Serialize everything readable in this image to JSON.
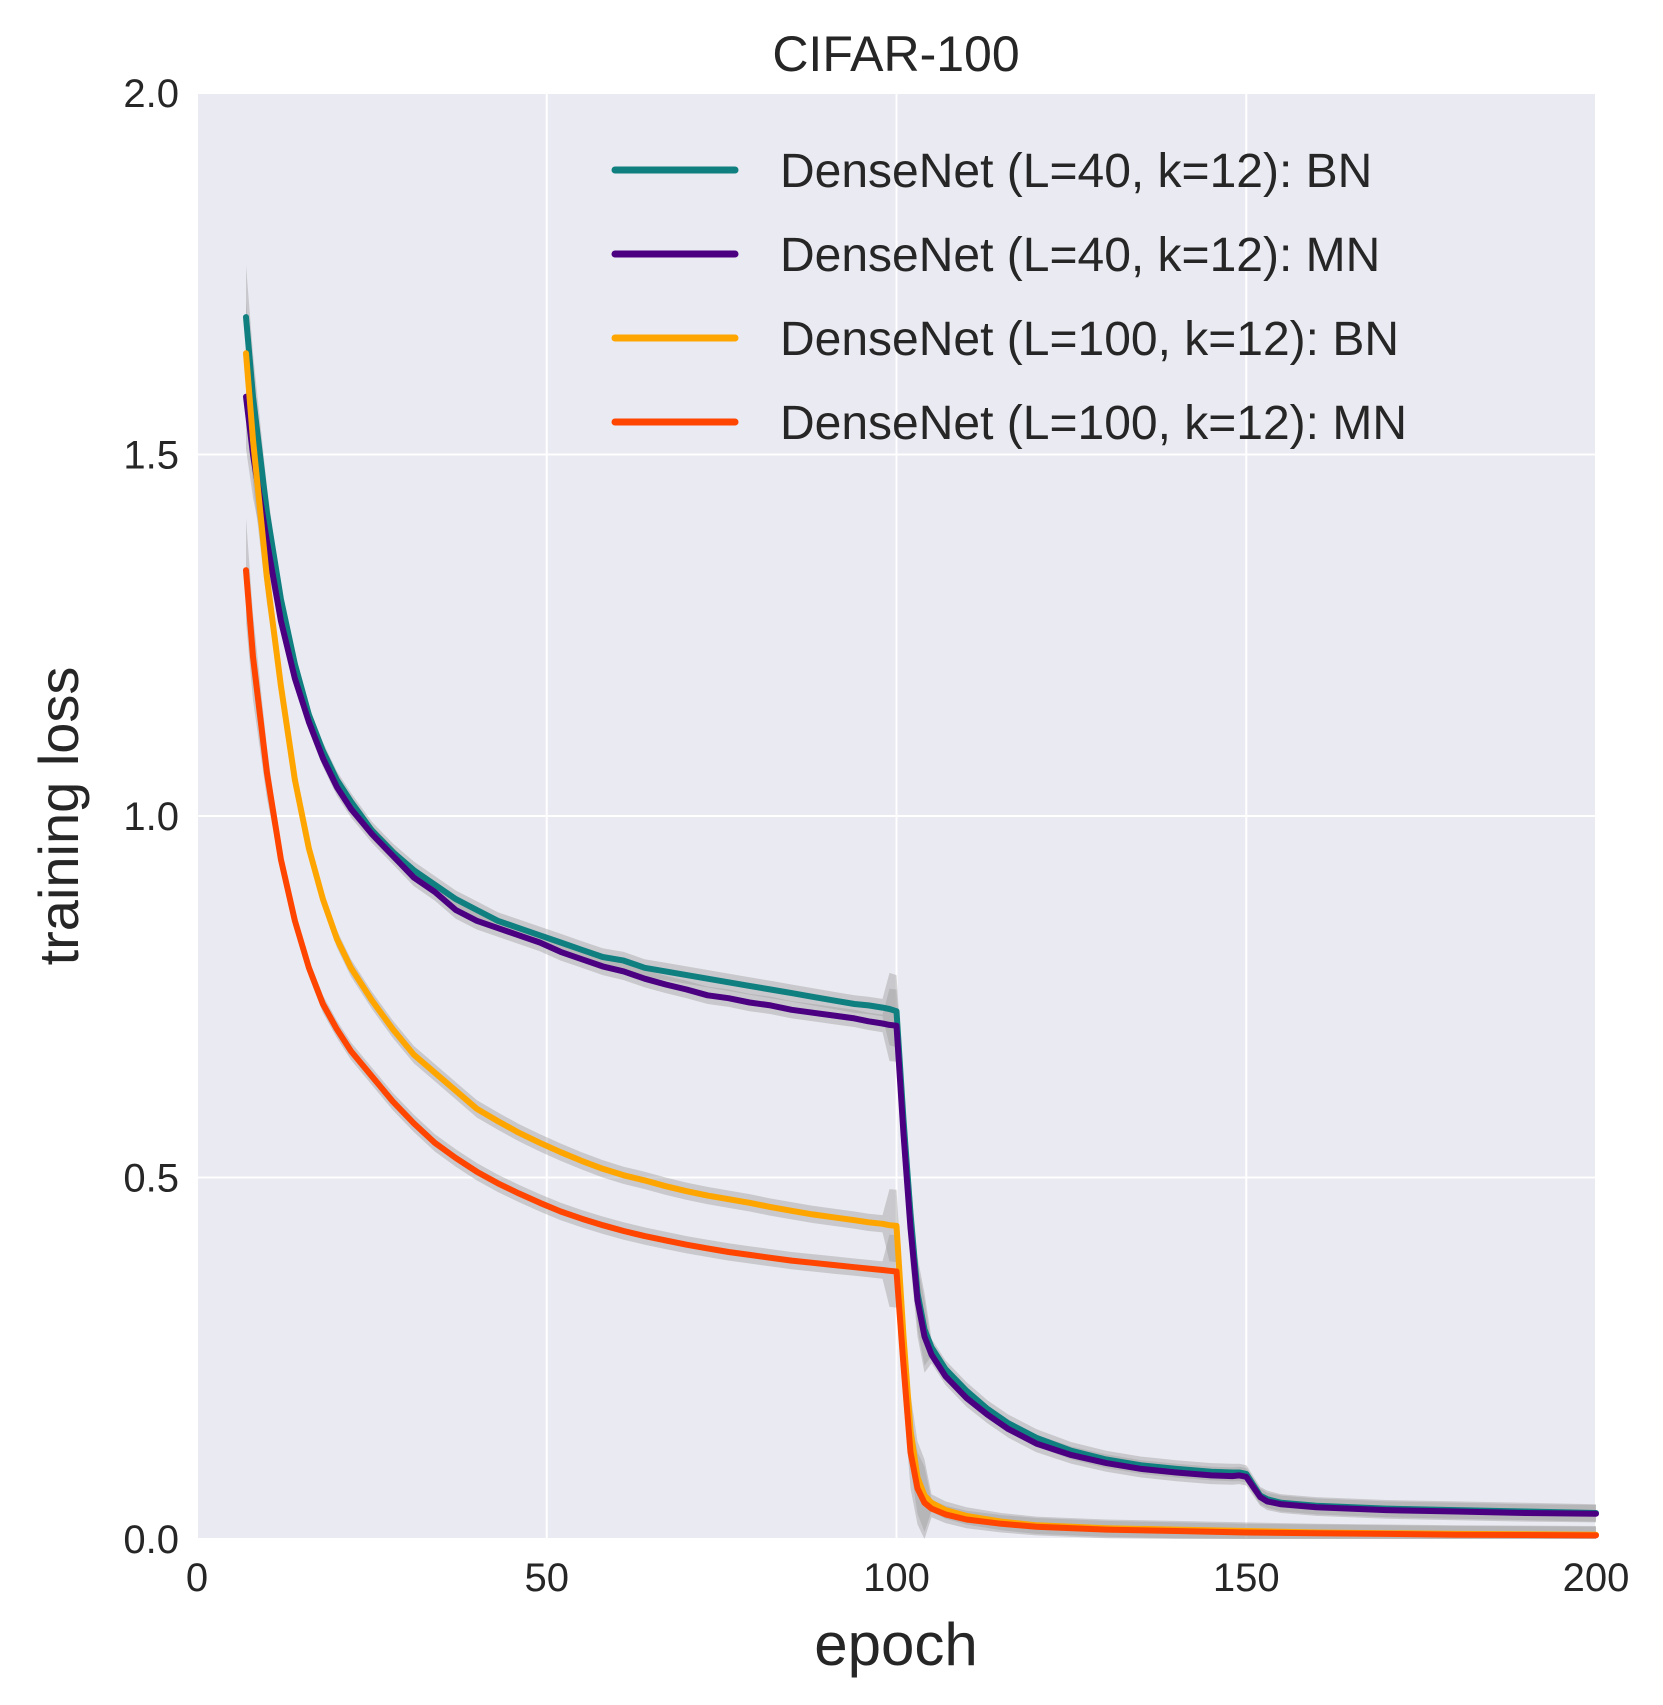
{
  "chart_data": {
    "type": "line",
    "title": "CIFAR-100",
    "xlabel": "epoch",
    "ylabel": "training loss",
    "xlim": [
      0,
      200
    ],
    "ylim": [
      0.0,
      2.0
    ],
    "xticks": [
      0,
      50,
      100,
      150,
      200
    ],
    "xtick_labels": [
      "0",
      "50",
      "100",
      "150",
      "200"
    ],
    "yticks": [
      0.0,
      0.5,
      1.0,
      1.5,
      2.0
    ],
    "ytick_labels": [
      "0.0",
      "0.5",
      "1.0",
      "1.5",
      "2.0"
    ],
    "grid": true,
    "legend_position": "top-right",
    "band_color": "#a0a0a0",
    "series": [
      {
        "name": "DenseNet (L=40, k=12): BN",
        "color": "#0f7f7f",
        "x": [
          7,
          8,
          10,
          12,
          14,
          16,
          18,
          20,
          22,
          25,
          28,
          31,
          34,
          37,
          40,
          43,
          46,
          49,
          52,
          55,
          58,
          61,
          64,
          67,
          70,
          73,
          76,
          79,
          82,
          85,
          88,
          91,
          94,
          96,
          98,
          99,
          100,
          101,
          102,
          103,
          104,
          105,
          107,
          110,
          113,
          116,
          120,
          125,
          130,
          135,
          140,
          145,
          148,
          149,
          150,
          151,
          152,
          153,
          155,
          160,
          170,
          180,
          190,
          200
        ],
        "y": [
          1.69,
          1.58,
          1.42,
          1.3,
          1.21,
          1.14,
          1.09,
          1.05,
          1.02,
          0.98,
          0.95,
          0.925,
          0.905,
          0.885,
          0.87,
          0.855,
          0.845,
          0.835,
          0.825,
          0.815,
          0.805,
          0.8,
          0.79,
          0.785,
          0.78,
          0.775,
          0.77,
          0.765,
          0.76,
          0.755,
          0.75,
          0.745,
          0.74,
          0.738,
          0.735,
          0.733,
          0.73,
          0.58,
          0.45,
          0.34,
          0.29,
          0.265,
          0.235,
          0.205,
          0.18,
          0.16,
          0.14,
          0.122,
          0.11,
          0.102,
          0.097,
          0.093,
          0.092,
          0.092,
          0.09,
          0.075,
          0.06,
          0.055,
          0.05,
          0.046,
          0.042,
          0.04,
          0.038,
          0.036
        ]
      },
      {
        "name": "DenseNet (L=40, k=12): MN",
        "color": "#4b0082",
        "x": [
          7,
          8,
          10,
          12,
          14,
          16,
          18,
          20,
          22,
          25,
          28,
          31,
          34,
          37,
          40,
          43,
          46,
          49,
          52,
          55,
          58,
          61,
          64,
          67,
          70,
          73,
          76,
          79,
          82,
          85,
          88,
          91,
          94,
          96,
          98,
          99,
          100,
          101,
          102,
          103,
          104,
          105,
          107,
          110,
          113,
          116,
          120,
          125,
          130,
          135,
          140,
          145,
          148,
          149,
          150,
          151,
          152,
          153,
          155,
          160,
          170,
          180,
          190,
          200
        ],
        "y": [
          1.58,
          1.5,
          1.38,
          1.27,
          1.19,
          1.13,
          1.08,
          1.04,
          1.01,
          0.975,
          0.945,
          0.915,
          0.895,
          0.87,
          0.855,
          0.845,
          0.835,
          0.825,
          0.812,
          0.802,
          0.792,
          0.785,
          0.775,
          0.767,
          0.76,
          0.752,
          0.748,
          0.742,
          0.738,
          0.732,
          0.728,
          0.724,
          0.72,
          0.716,
          0.713,
          0.711,
          0.71,
          0.56,
          0.43,
          0.33,
          0.28,
          0.255,
          0.225,
          0.195,
          0.172,
          0.152,
          0.132,
          0.116,
          0.105,
          0.097,
          0.092,
          0.088,
          0.087,
          0.088,
          0.086,
          0.072,
          0.058,
          0.052,
          0.048,
          0.044,
          0.04,
          0.038,
          0.036,
          0.035
        ]
      },
      {
        "name": "DenseNet (L=100, k=12): BN",
        "color": "#ffa500",
        "x": [
          7,
          8,
          10,
          12,
          14,
          16,
          18,
          20,
          22,
          25,
          28,
          31,
          34,
          37,
          40,
          43,
          46,
          49,
          52,
          55,
          58,
          61,
          64,
          67,
          70,
          73,
          76,
          79,
          82,
          85,
          88,
          91,
          94,
          96,
          98,
          99,
          100,
          101,
          102,
          103,
          104,
          105,
          107,
          110,
          115,
          120,
          130,
          140,
          150,
          160,
          170,
          180,
          190,
          200
        ],
        "y": [
          1.64,
          1.52,
          1.33,
          1.18,
          1.05,
          0.955,
          0.885,
          0.83,
          0.79,
          0.745,
          0.705,
          0.67,
          0.645,
          0.62,
          0.595,
          0.578,
          0.562,
          0.548,
          0.535,
          0.523,
          0.512,
          0.503,
          0.496,
          0.488,
          0.481,
          0.475,
          0.47,
          0.465,
          0.459,
          0.454,
          0.449,
          0.445,
          0.441,
          0.438,
          0.436,
          0.434,
          0.433,
          0.28,
          0.15,
          0.085,
          0.06,
          0.05,
          0.04,
          0.032,
          0.024,
          0.019,
          0.015,
          0.013,
          0.011,
          0.009,
          0.008,
          0.007,
          0.0065,
          0.006
        ]
      },
      {
        "name": "DenseNet (L=100, k=12): MN",
        "color": "#ff4500",
        "x": [
          7,
          8,
          10,
          12,
          14,
          16,
          18,
          20,
          22,
          25,
          28,
          31,
          34,
          37,
          40,
          43,
          46,
          49,
          52,
          55,
          58,
          61,
          64,
          67,
          70,
          73,
          76,
          79,
          82,
          85,
          88,
          91,
          94,
          96,
          98,
          99,
          100,
          101,
          102,
          103,
          104,
          105,
          107,
          110,
          115,
          120,
          130,
          140,
          150,
          160,
          170,
          180,
          190,
          200
        ],
        "y": [
          1.34,
          1.22,
          1.06,
          0.94,
          0.855,
          0.79,
          0.74,
          0.705,
          0.675,
          0.64,
          0.605,
          0.575,
          0.548,
          0.527,
          0.508,
          0.492,
          0.478,
          0.465,
          0.453,
          0.443,
          0.434,
          0.426,
          0.419,
          0.413,
          0.407,
          0.402,
          0.397,
          0.393,
          0.389,
          0.385,
          0.382,
          0.379,
          0.376,
          0.374,
          0.372,
          0.371,
          0.37,
          0.24,
          0.12,
          0.07,
          0.05,
          0.042,
          0.034,
          0.027,
          0.021,
          0.017,
          0.013,
          0.011,
          0.009,
          0.008,
          0.007,
          0.006,
          0.0055,
          0.005
        ]
      }
    ]
  }
}
